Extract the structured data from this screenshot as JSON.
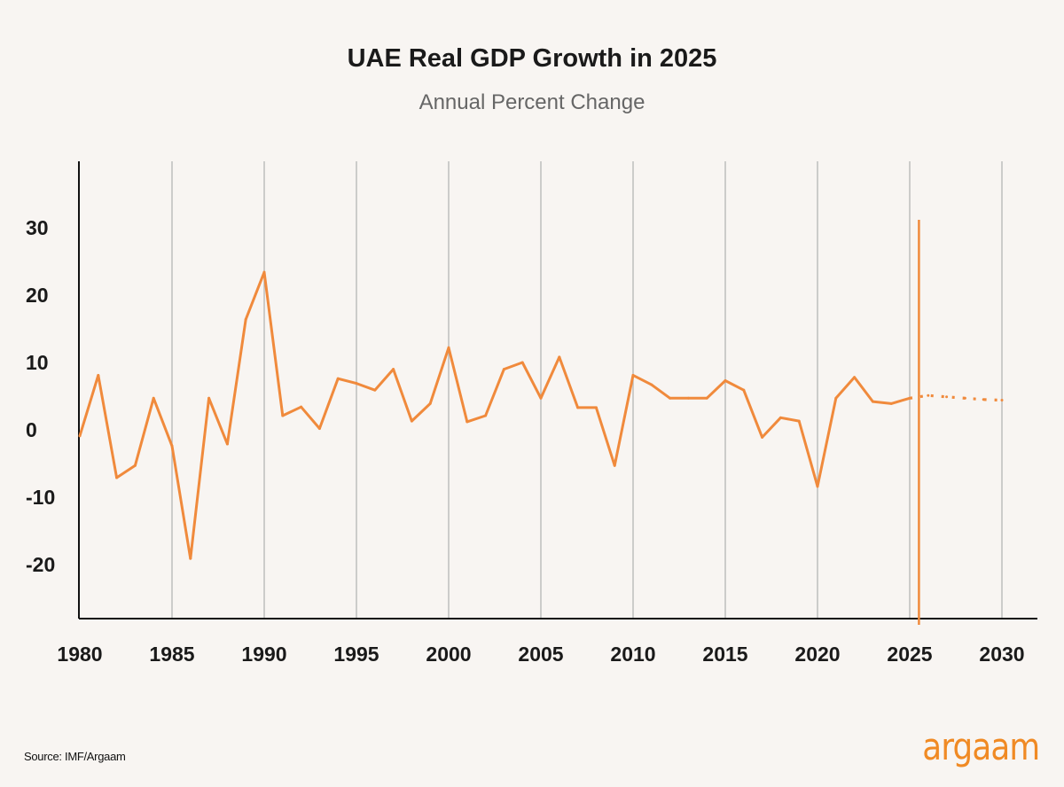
{
  "chart_data": {
    "type": "line",
    "title": "UAE Real GDP Growth in 2025",
    "subtitle": "Annual Percent Change",
    "xlabel": "",
    "ylabel": "",
    "xlim": [
      1980,
      2032
    ],
    "ylim": [
      -28,
      40
    ],
    "x_ticks": [
      "1980",
      "1985",
      "1990",
      "1995",
      "2000",
      "2005",
      "2010",
      "2015",
      "2020",
      "2025",
      "2030"
    ],
    "y_ticks": [
      "30",
      "20",
      "10",
      "0",
      "-10",
      "-20"
    ],
    "grid": "vertical",
    "series": [
      {
        "style": "solid",
        "x": [
          1980,
          1981,
          1982,
          1983,
          1984,
          1985,
          1986,
          1987,
          1988,
          1989,
          1990,
          1991,
          1992,
          1993,
          1994,
          1995,
          1996,
          1997,
          1998,
          1999,
          2000,
          2001,
          2002,
          2003,
          2004,
          2005,
          2006,
          2007,
          2008,
          2009,
          2010,
          2011,
          2012,
          2013,
          2014,
          2015,
          2016,
          2017,
          2018,
          2019,
          2020,
          2021,
          2022,
          2023,
          2024,
          2025
        ],
        "y": [
          -0.9,
          8.1,
          -7.1,
          -5.3,
          4.7,
          -2.4,
          -19.1,
          4.7,
          -2.1,
          16.4,
          23.4,
          2.1,
          3.4,
          0.2,
          7.6,
          6.9,
          5.9,
          9.0,
          1.3,
          3.9,
          12.2,
          1.2,
          2.1,
          9.0,
          10.0,
          4.7,
          10.8,
          3.3,
          3.3,
          -5.3,
          8.1,
          6.7,
          4.7,
          4.7,
          4.7,
          7.3,
          5.9,
          -1.1,
          1.8,
          1.3,
          -8.4,
          4.7,
          7.8,
          4.2,
          3.9,
          4.7
        ]
      },
      {
        "style": "dotted",
        "x": [
          2025,
          2026,
          2027,
          2028,
          2029,
          2030
        ],
        "y": [
          4.7,
          5.1,
          4.9,
          4.7,
          4.5,
          4.4
        ]
      }
    ],
    "marker_line_x": 2025.5,
    "color": "#f08a3c"
  },
  "source": "Source: IMF/Argaam",
  "logo": "argaam"
}
